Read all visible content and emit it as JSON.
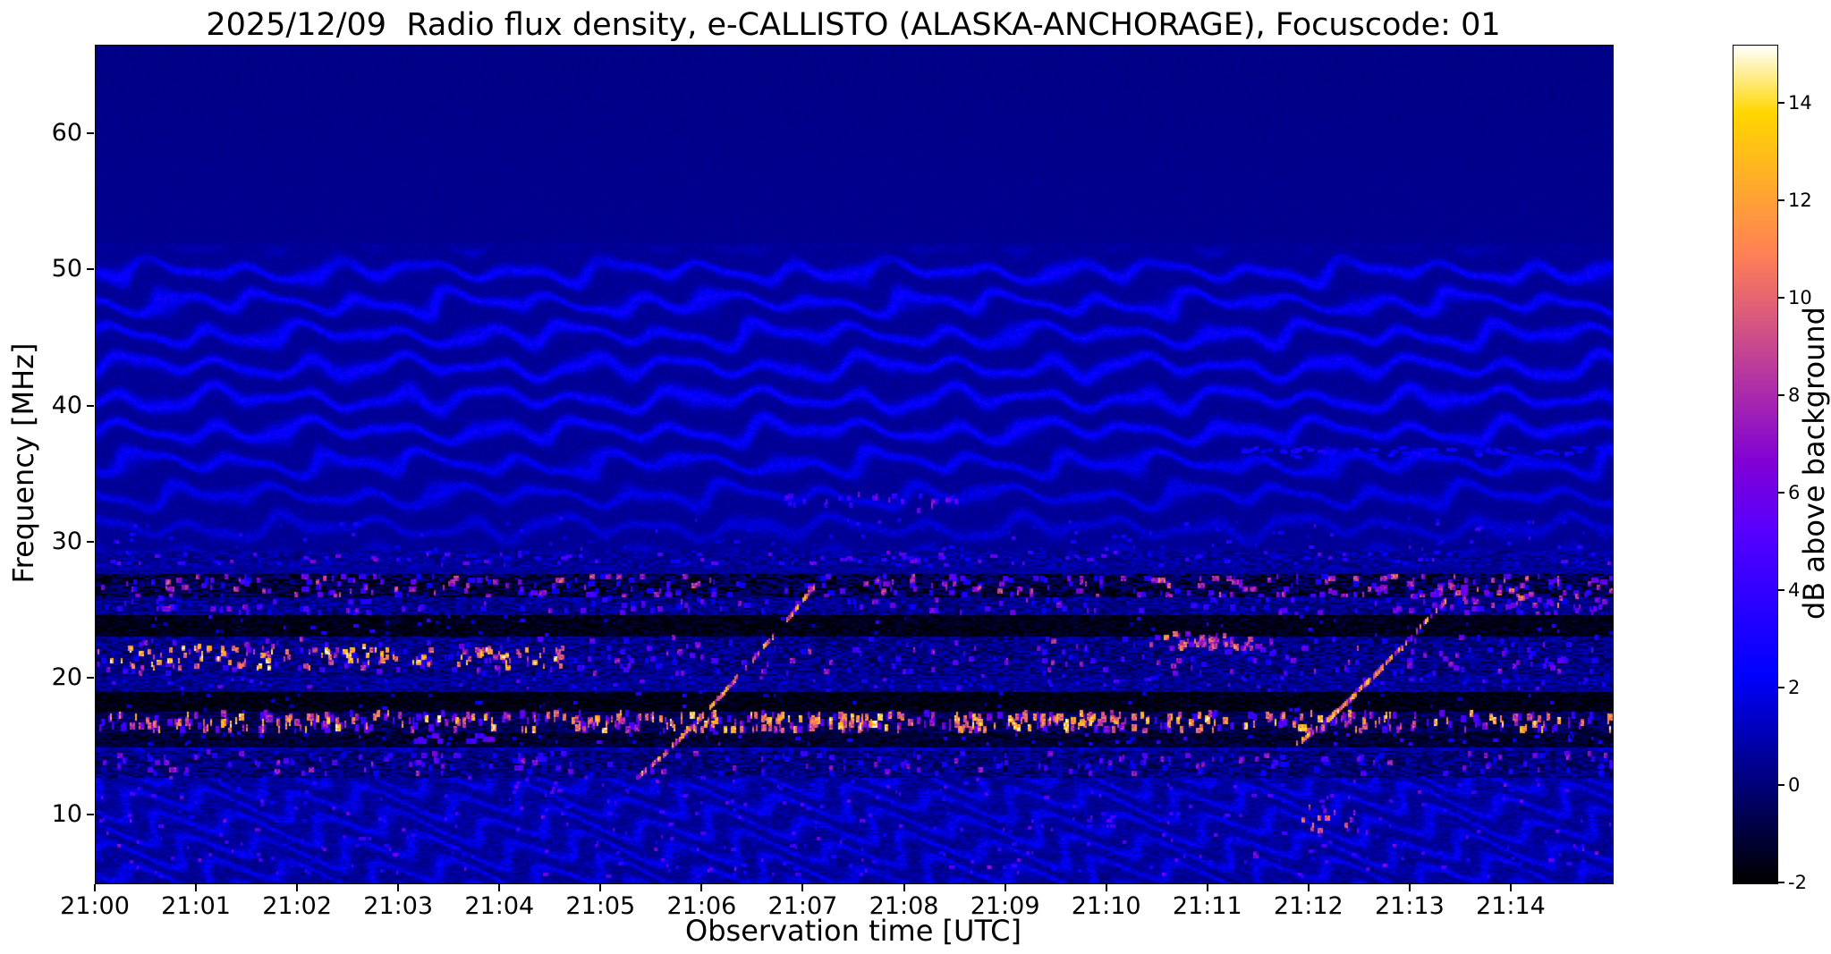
{
  "chart_data": {
    "type": "heatmap",
    "title": "2025/12/09  Radio flux density, e-CALLISTO (ALASKA-ANCHORAGE), Focuscode: 01",
    "xlabel": "Observation time [UTC]",
    "ylabel": "Frequency [MHz]",
    "x_ticks": [
      "21:00",
      "21:01",
      "21:02",
      "21:03",
      "21:04",
      "21:05",
      "21:06",
      "21:07",
      "21:08",
      "21:09",
      "21:10",
      "21:11",
      "21:12",
      "21:13",
      "21:14"
    ],
    "x_range_minutes": [
      0,
      15
    ],
    "y_ticks": [
      10,
      20,
      30,
      40,
      50,
      60
    ],
    "y_range_mhz": [
      5.0,
      66.5
    ],
    "colorbar": {
      "label": "dB above background",
      "ticks": [
        -2,
        0,
        2,
        4,
        6,
        8,
        10,
        12,
        14
      ],
      "vmin": -2,
      "vmax": 15.2,
      "colormap": "gnuplot2"
    },
    "render": {
      "seed": 20251209,
      "background": {
        "sky_db": 0.42,
        "mid_db": 0.54,
        "low_db": 0.55
      },
      "ripples": [
        {
          "f": [
            28,
            52
          ],
          "spacing_mhz": 2.35,
          "amp_db": 1.9
        },
        {
          "f": [
            5,
            15.8
          ],
          "spacing_mhz": 1.75,
          "amp_db": 1.45
        }
      ],
      "bands": [
        {
          "f": [
            28.3,
            29.4
          ],
          "base": 0.6,
          "noise": 0.8,
          "dash": {
            "n": 130,
            "len": [
              0.02,
              0.07
            ],
            "th": 0.3,
            "val": [
              2,
              6.5
            ]
          }
        },
        {
          "f": [
            26.0,
            27.7
          ],
          "base": -0.9,
          "noise": 1.4,
          "dash": {
            "n": 320,
            "len": [
              0.015,
              0.07
            ],
            "th": 0.4,
            "val": [
              2.5,
              9.5
            ]
          }
        },
        {
          "f": [
            24.7,
            26.0
          ],
          "base": 0.3,
          "noise": 1.0,
          "dash": {
            "n": 150,
            "len": [
              0.02,
              0.06
            ],
            "th": 0.35,
            "val": [
              2,
              7
            ]
          }
        },
        {
          "f": [
            23.2,
            24.7
          ],
          "base": -1.6,
          "noise": 0.6,
          "dash": {
            "n": 50,
            "len": [
              0.02,
              0.05
            ],
            "th": 0.3,
            "val": [
              1,
              4.5
            ]
          }
        },
        {
          "f": [
            20.3,
            23.2
          ],
          "base": 0.2,
          "noise": 1.1,
          "dash": {
            "n": 260,
            "len": [
              0.015,
              0.06
            ],
            "th": 0.4,
            "val": [
              2.5,
              8
            ]
          }
        },
        {
          "f": [
            19.1,
            20.3
          ],
          "base": 0.5,
          "noise": 0.9,
          "dash": {
            "n": 90,
            "len": [
              0.02,
              0.05
            ],
            "th": 0.3,
            "val": [
              2,
              6
            ]
          }
        },
        {
          "f": [
            17.6,
            19.1
          ],
          "base": -1.7,
          "noise": 0.5,
          "dash": {
            "n": 40,
            "len": [
              0.02,
              0.05
            ],
            "th": 0.3,
            "val": [
              1,
              4
            ]
          }
        },
        {
          "f": [
            16.1,
            17.6
          ],
          "base": -0.6,
          "noise": 1.0,
          "dash": {
            "n": 500,
            "len": [
              0.012,
              0.05
            ],
            "th": 0.5,
            "val": [
              4,
              13.5
            ]
          }
        },
        {
          "f": [
            15.1,
            16.1
          ],
          "base": -1.2,
          "noise": 0.7,
          "dash": {
            "n": 70,
            "len": [
              0.02,
              0.05
            ],
            "th": 0.3,
            "val": [
              1.5,
              5
            ]
          }
        },
        {
          "f": [
            12.9,
            14.7
          ],
          "base": 0.1,
          "noise": 1.1,
          "dash": {
            "n": 220,
            "len": [
              0.015,
              0.06
            ],
            "th": 0.35,
            "val": [
              2,
              7.5
            ]
          }
        }
      ],
      "patches": [
        {
          "t": [
            0,
            4.6
          ],
          "f": [
            20.8,
            22.4
          ],
          "n": 130,
          "len": [
            0.015,
            0.05
          ],
          "th": 0.45,
          "val": [
            8,
            14.5
          ]
        },
        {
          "t": [
            5.3,
            10.8
          ],
          "f": [
            16.3,
            17.4
          ],
          "n": 80,
          "len": [
            0.015,
            0.05
          ],
          "th": 0.5,
          "val": [
            9,
            14
          ]
        },
        {
          "t": [
            10.55,
            11.45
          ],
          "f": [
            22.2,
            23.3
          ],
          "n": 45,
          "len": [
            0.02,
            0.06
          ],
          "th": 0.4,
          "val": [
            6,
            11
          ]
        },
        {
          "t": [
            6.8,
            8.5
          ],
          "f": [
            32.4,
            33.6
          ],
          "n": 24,
          "len": [
            0.02,
            0.05
          ],
          "th": 0.35,
          "val": [
            3.5,
            7
          ]
        },
        {
          "t": [
            11.9,
            12.7
          ],
          "f": [
            8.8,
            10.6
          ],
          "n": 14,
          "len": [
            0.02,
            0.05
          ],
          "th": 0.4,
          "val": [
            6,
            10.5
          ]
        },
        {
          "t": [
            13.0,
            15.0
          ],
          "f": [
            25.2,
            26.2
          ],
          "n": 30,
          "len": [
            0.02,
            0.06
          ],
          "th": 0.4,
          "val": [
            5,
            10
          ]
        },
        {
          "t": [
            11.3,
            15.0
          ],
          "f": [
            36.3,
            37.0
          ],
          "n": 60,
          "len": [
            0.03,
            0.1
          ],
          "th": 0.3,
          "val": [
            1.8,
            3.2
          ]
        },
        {
          "t": [
            3.1,
            3.9
          ],
          "f": [
            15.4,
            15.9
          ],
          "n": 8,
          "len": [
            0.05,
            0.12
          ],
          "th": 0.35,
          "val": [
            3.5,
            6
          ]
        },
        {
          "t": [
            0,
            15
          ],
          "f": [
            5.5,
            12.8
          ],
          "n": 400,
          "len": [
            0.015,
            0.05
          ],
          "th": 0.3,
          "val": [
            2,
            6.5
          ]
        },
        {
          "t": [
            0,
            15
          ],
          "f": [
            29.5,
            31.8
          ],
          "n": 120,
          "len": [
            0.015,
            0.05
          ],
          "th": 0.3,
          "val": [
            1.5,
            4.5
          ]
        }
      ],
      "traces": [
        {
          "t0": 5.3,
          "f0": 12.6,
          "t1": 7.15,
          "f1": 27.3,
          "curve": 1.15,
          "width": 0.38,
          "val": [
            6,
            13
          ]
        },
        {
          "t0": 11.85,
          "f0": 15.2,
          "t1": 13.35,
          "f1": 25.9,
          "curve": 1.15,
          "width": 0.38,
          "val": [
            6,
            13
          ]
        }
      ]
    }
  }
}
